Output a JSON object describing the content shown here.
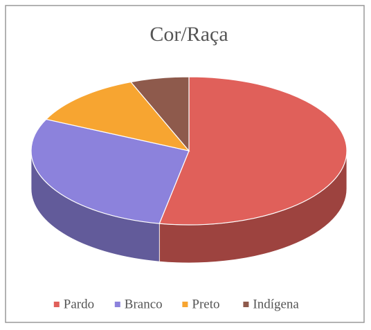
{
  "chart_data": {
    "type": "pie3d",
    "title": "Cor/Raça",
    "categories": [
      "Pardo",
      "Branco",
      "Preto",
      "Indígena"
    ],
    "values": [
      53,
      29,
      12,
      6
    ],
    "colors": [
      "#e0605a",
      "#8c82dc",
      "#f7a531",
      "#8e5a4c"
    ],
    "legend": "bottom"
  }
}
